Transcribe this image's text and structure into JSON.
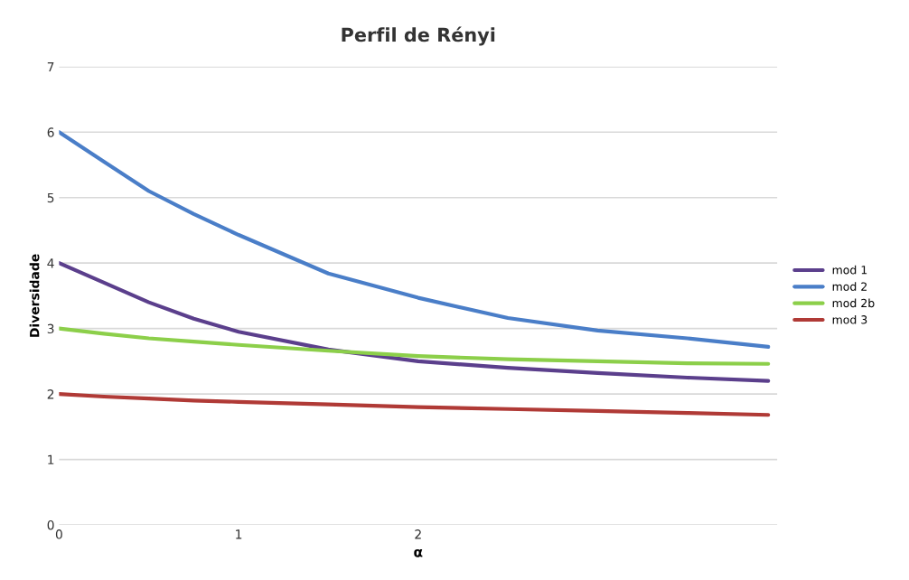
{
  "chart_data": {
    "type": "line",
    "title": "Perfil de Rényi",
    "xlabel": "α",
    "ylabel": "Diversidade",
    "x": [
      0,
      0.25,
      0.5,
      0.75,
      1,
      1.5,
      2,
      2.5,
      3,
      3.5,
      3.95
    ],
    "series": [
      {
        "name": "mod 1",
        "color": "#5b3f8c",
        "values": [
          4.0,
          3.7,
          3.4,
          3.15,
          2.95,
          2.68,
          2.5,
          2.4,
          2.32,
          2.25,
          2.2
        ]
      },
      {
        "name": "mod 2",
        "color": "#4a7ec8",
        "values": [
          6.0,
          5.55,
          5.1,
          4.75,
          4.43,
          3.84,
          3.47,
          3.16,
          2.97,
          2.85,
          2.72
        ]
      },
      {
        "name": "mod 2b",
        "color": "#8ccf4a",
        "values": [
          3.0,
          2.92,
          2.85,
          2.8,
          2.75,
          2.66,
          2.58,
          2.53,
          2.5,
          2.47,
          2.46
        ]
      },
      {
        "name": "mod 3",
        "color": "#b03a36",
        "values": [
          2.0,
          1.96,
          1.93,
          1.9,
          1.88,
          1.84,
          1.8,
          1.77,
          1.74,
          1.71,
          1.68
        ]
      }
    ],
    "xlim": [
      0,
      4
    ],
    "xticks": [
      0,
      1,
      2
    ],
    "ylim": [
      0,
      7
    ],
    "yticks": [
      0,
      1,
      2,
      3,
      4,
      5,
      6,
      7
    ],
    "grid": "y",
    "legend": "right",
    "marker": "none",
    "line_style": "solid"
  }
}
